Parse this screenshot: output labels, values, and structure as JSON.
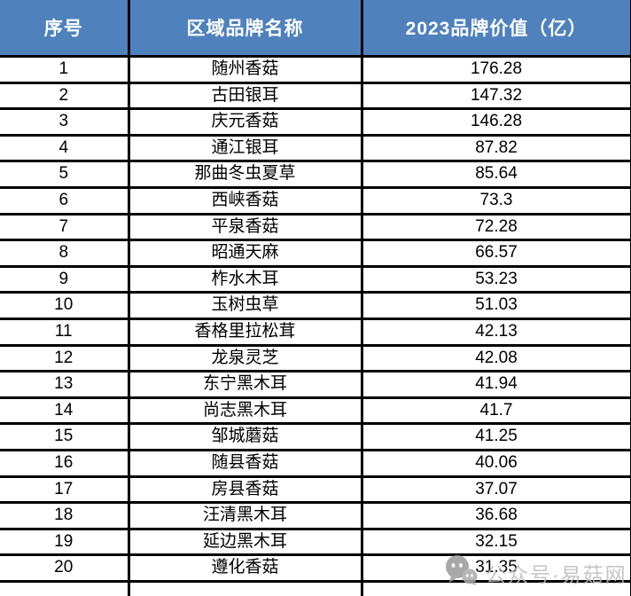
{
  "chart_data": {
    "type": "table",
    "columns": [
      "序号",
      "区域品牌名称",
      "2023品牌价值（亿）"
    ],
    "rows": [
      [
        "1",
        "随州香菇",
        "176.28"
      ],
      [
        "2",
        "古田银耳",
        "147.32"
      ],
      [
        "3",
        "庆元香菇",
        "146.28"
      ],
      [
        "4",
        "通江银耳",
        "87.82"
      ],
      [
        "5",
        "那曲冬虫夏草",
        "85.64"
      ],
      [
        "6",
        "西峡香菇",
        "73.3"
      ],
      [
        "7",
        "平泉香菇",
        "72.28"
      ],
      [
        "8",
        "昭通天麻",
        "66.57"
      ],
      [
        "9",
        "柞水木耳",
        "53.23"
      ],
      [
        "10",
        "玉树虫草",
        "51.03"
      ],
      [
        "11",
        "香格里拉松茸",
        "42.13"
      ],
      [
        "12",
        "龙泉灵芝",
        "42.08"
      ],
      [
        "13",
        "东宁黑木耳",
        "41.94"
      ],
      [
        "14",
        "尚志黑木耳",
        "41.7"
      ],
      [
        "15",
        "邹城蘑菇",
        "41.25"
      ],
      [
        "16",
        "随县香菇",
        "40.06"
      ],
      [
        "17",
        "房县香菇",
        "37.07"
      ],
      [
        "18",
        "汪清黑木耳",
        "36.68"
      ],
      [
        "19",
        "延边黑木耳",
        "32.15"
      ],
      [
        "20",
        "遵化香菇",
        "31.35"
      ]
    ]
  },
  "watermark": {
    "text": "公众号·易菇网",
    "icon": "chat-bubbles-logo-icon"
  },
  "colors": {
    "header_bg": "#4F81BD",
    "header_text": "#FFFFFF",
    "row_bg": "#FFFFFF",
    "border": "#000000",
    "watermark_text": "#BDBDBD"
  }
}
